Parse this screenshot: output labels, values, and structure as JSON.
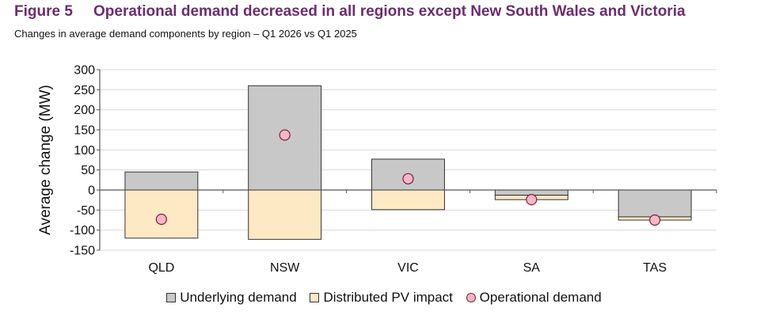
{
  "header": {
    "figure_label": "Figure 5",
    "title": "Operational demand decreased in all regions except New South Wales and Victoria",
    "subtitle": "Changes in average demand components by region – Q1 2026 vs Q1 2025"
  },
  "colors": {
    "underlying": "#c8c8c8",
    "pv": "#fde9c4",
    "operational": "#f7b6c8",
    "operational_stroke": "#7a1f3a",
    "grid": "#d9d9d9",
    "title": "#6b2d6e"
  },
  "chart_data": {
    "type": "bar",
    "stacked": true,
    "categories": [
      "QLD",
      "NSW",
      "VIC",
      "SA",
      "TAS"
    ],
    "series": [
      {
        "name": "Underlying demand",
        "kind": "bar",
        "values": [
          45,
          260,
          77,
          -13,
          -67
        ]
      },
      {
        "name": "Distributed PV impact",
        "kind": "bar",
        "values": [
          -120,
          -123,
          -49,
          -11,
          -8
        ]
      },
      {
        "name": "Operational demand",
        "kind": "marker",
        "values": [
          -73,
          137,
          28,
          -24,
          -75
        ]
      }
    ],
    "ylabel": "Average change (MW)",
    "ylim": [
      -150,
      300
    ],
    "yticks": [
      300,
      250,
      200,
      150,
      100,
      50,
      0,
      -50,
      -100,
      -150
    ],
    "grid": true,
    "legend_position": "bottom"
  }
}
